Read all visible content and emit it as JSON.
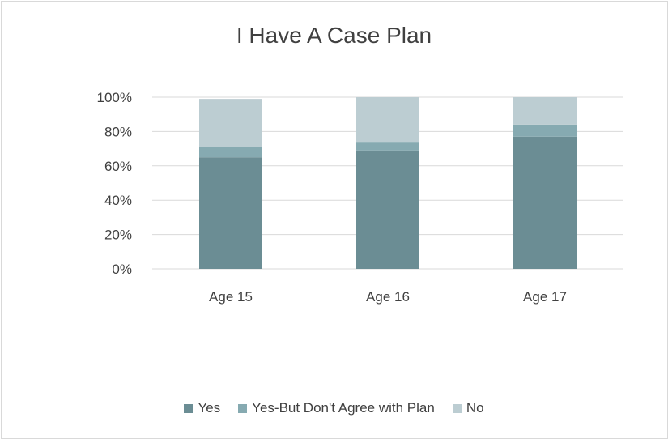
{
  "chart_data": {
    "type": "bar",
    "stacked": true,
    "title": "I Have A Case Plan",
    "categories": [
      "Age 15",
      "Age 16",
      "Age 17"
    ],
    "series": [
      {
        "name": "Yes",
        "color": "#6b8d94",
        "values": [
          65,
          69,
          77
        ]
      },
      {
        "name": "Yes-But Don't Agree with Plan",
        "color": "#86aab1",
        "values": [
          6,
          5,
          7
        ]
      },
      {
        "name": "No",
        "color": "#bccdd2",
        "values": [
          28,
          26,
          16
        ]
      }
    ],
    "yticks": [
      "0%",
      "20%",
      "40%",
      "60%",
      "80%",
      "100%"
    ],
    "ylim": [
      0,
      100
    ],
    "legend_position": "bottom",
    "grid": true
  }
}
